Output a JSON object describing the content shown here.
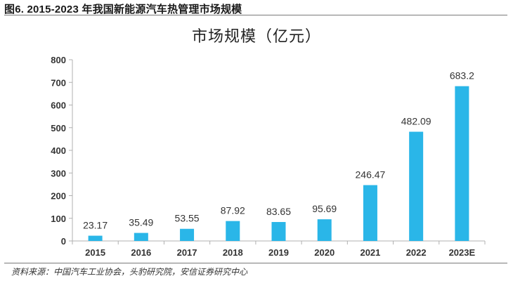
{
  "figure": {
    "title": "图6. 2015-2023 年我国新能源汽车热管理市场规模",
    "source": "资料来源：中国汽车工业协会，头豹研究院，安信证券研究中心"
  },
  "colors": {
    "bar": "#2AB6E8",
    "axis": "#B0B0B0",
    "text": "#333333"
  },
  "chart_data": {
    "type": "bar",
    "title": "市场规模（亿元）",
    "xlabel": "",
    "ylabel": "",
    "categories": [
      "2015",
      "2016",
      "2017",
      "2018",
      "2019",
      "2020",
      "2021",
      "2022",
      "2023E"
    ],
    "values": [
      23.17,
      35.49,
      53.55,
      87.92,
      83.65,
      95.69,
      246.47,
      482.09,
      683.2
    ],
    "value_labels": [
      "23.17",
      "35.49",
      "53.55",
      "87.92",
      "83.65",
      "95.69",
      "246.47",
      "482.09",
      "683.2"
    ],
    "ylim": [
      0,
      800
    ],
    "yticks": [
      "0",
      "100",
      "200",
      "300",
      "400",
      "500",
      "600",
      "700",
      "800"
    ],
    "grid": false,
    "legend": "none"
  }
}
